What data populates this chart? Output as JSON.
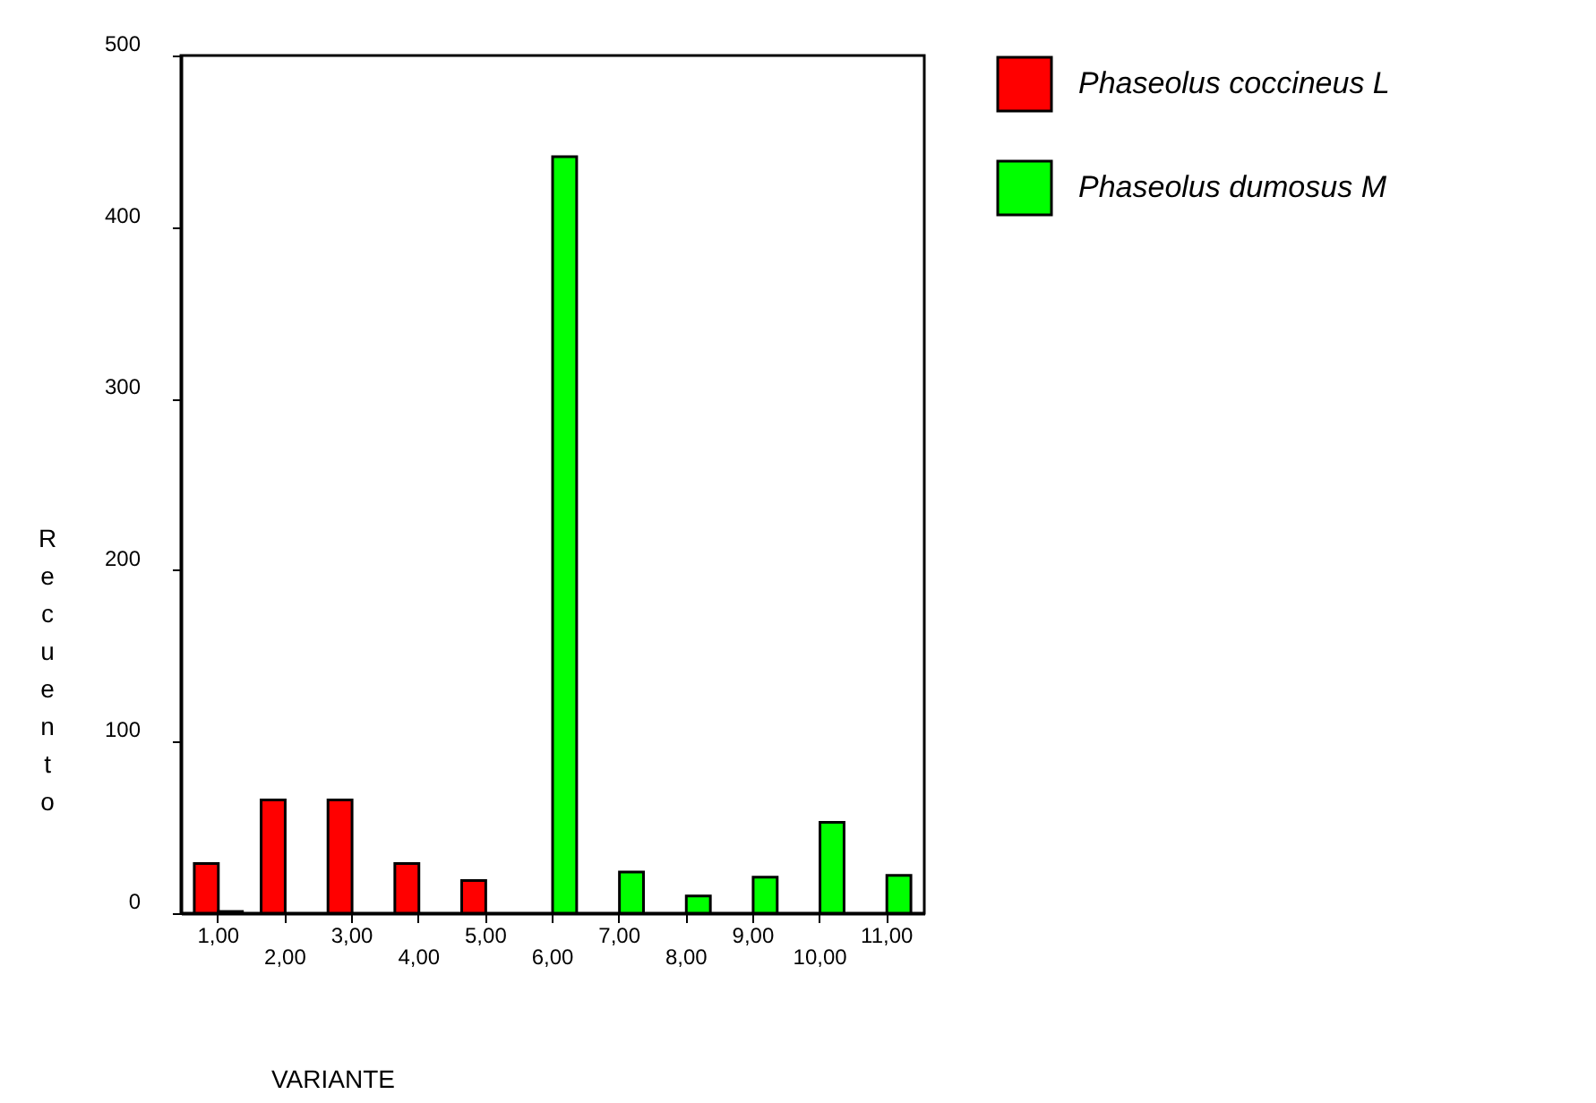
{
  "chart_data": {
    "type": "bar",
    "xlabel": "VARIANTE",
    "ylabel": "Recuento",
    "categories": [
      "1,00",
      "2,00",
      "3,00",
      "4,00",
      "5,00",
      "6,00",
      "7,00",
      "8,00",
      "9,00",
      "10,00",
      "11,00"
    ],
    "series": [
      {
        "name": "Phaseolus coccineus L",
        "color": "#ff0000",
        "values": [
          29,
          66,
          66,
          29,
          19,
          null,
          null,
          null,
          null,
          null,
          null
        ]
      },
      {
        "name": "Phaseolus dumosus M",
        "color": "#00ff00",
        "values": [
          1,
          null,
          null,
          null,
          null,
          441,
          24,
          10,
          21,
          53,
          22
        ]
      }
    ],
    "ylim": [
      0,
      500
    ],
    "yticks": [
      0,
      100,
      200,
      300,
      400,
      500
    ],
    "legend": "right",
    "grid": false
  }
}
